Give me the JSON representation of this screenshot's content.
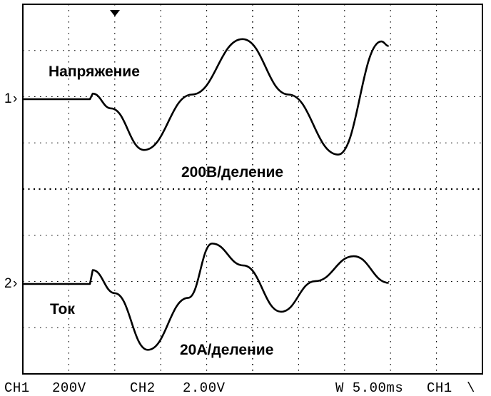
{
  "labels": {
    "voltage_title": "Напряжение",
    "voltage_scale": "200В/деление",
    "current_title": "Ток",
    "current_scale": "20А/деление",
    "ch1_marker": "1",
    "ch2_marker": "2"
  },
  "status_bar": {
    "ch1": "CH1",
    "ch1_scale": "200V",
    "ch2": "CH2",
    "ch2_scale": "2.00V",
    "timebase": "W 5.00ms",
    "trigger_source": "CH1",
    "trigger_slope_symbol": "\\"
  },
  "chart_data": {
    "type": "line",
    "grid": true,
    "grid_divisions": {
      "x": 10,
      "y": 8
    },
    "x_unit": "ms",
    "series": [
      {
        "name": "Напряжение",
        "unit": "В",
        "x": [
          0,
          7.3,
          7.6,
          9.6,
          13.2,
          18.4,
          23.9,
          28.9,
          34.3,
          39.0,
          39.8
        ],
        "values": [
          0,
          0,
          24,
          -40,
          -220,
          20,
          260,
          20,
          -240,
          250,
          230
        ]
      },
      {
        "name": "Ток",
        "unit": "А",
        "x": [
          0,
          7.3,
          7.6,
          10.0,
          13.6,
          18.0,
          20.6,
          24.0,
          28.1,
          31.8,
          36.0,
          39.8
        ],
        "values": [
          0,
          0,
          6,
          -4,
          -28.5,
          -6,
          17.5,
          8,
          -12,
          1.2,
          12,
          0.5
        ]
      }
    ]
  }
}
